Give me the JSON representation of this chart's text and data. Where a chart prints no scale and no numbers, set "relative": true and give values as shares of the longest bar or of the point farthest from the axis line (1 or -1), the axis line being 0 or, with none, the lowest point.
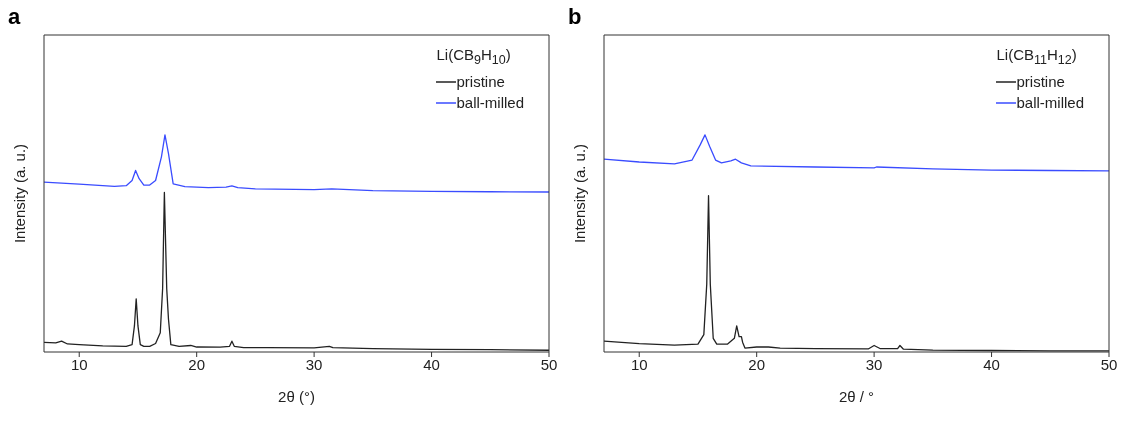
{
  "chart_data": [
    {
      "type": "line",
      "title": "a",
      "xlabel": "2θ (°)",
      "ylabel": "Intensity (a. u.)",
      "legend_title": "Li(CB$_{9}$H$_{10}$)",
      "legend": "top right",
      "relative": true,
      "marker": "none",
      "line_style": "solid",
      "xlim": [
        7,
        50
      ],
      "xticks": [
        10,
        20,
        30,
        40,
        50
      ],
      "series": [
        {
          "name": "pristine",
          "color": "#222222",
          "x": [
            7,
            8,
            8.5,
            9,
            10,
            12,
            14,
            14.5,
            14.7,
            14.85,
            15.0,
            15.2,
            15.5,
            16,
            16.5,
            16.9,
            17.1,
            17.25,
            17.45,
            17.6,
            17.8,
            18.5,
            19.5,
            20,
            22,
            22.8,
            23,
            23.2,
            24,
            26,
            30,
            31.3,
            31.6,
            35,
            40,
            45,
            50
          ],
          "values": [
            0.044,
            0.042,
            0.05,
            0.037,
            0.034,
            0.028,
            0.026,
            0.034,
            0.12,
            0.245,
            0.12,
            0.034,
            0.026,
            0.026,
            0.039,
            0.089,
            0.291,
            0.735,
            0.291,
            0.151,
            0.034,
            0.026,
            0.03,
            0.023,
            0.022,
            0.026,
            0.05,
            0.026,
            0.02,
            0.02,
            0.019,
            0.026,
            0.02,
            0.016,
            0.012,
            0.011,
            0.008
          ]
        },
        {
          "name": "ball-milled",
          "color": "#3a4cff",
          "x": [
            7,
            10,
            13,
            14,
            14.5,
            14.8,
            15.1,
            15.5,
            16,
            16.5,
            17,
            17.3,
            17.6,
            18,
            19,
            21,
            22.5,
            23,
            23.5,
            25,
            30,
            31.5,
            35,
            40,
            45,
            50
          ],
          "values": [
            0.782,
            0.773,
            0.763,
            0.766,
            0.79,
            0.836,
            0.798,
            0.769,
            0.769,
            0.79,
            0.899,
            1,
            0.914,
            0.774,
            0.762,
            0.757,
            0.759,
            0.765,
            0.757,
            0.751,
            0.748,
            0.751,
            0.743,
            0.74,
            0.738,
            0.737
          ]
        }
      ]
    },
    {
      "type": "line",
      "title": "b",
      "xlabel": "2θ / °",
      "ylabel": "Intensity (a. u.)",
      "legend_title": "Li(CB$_{11}$H$_{12}$)",
      "legend": "top right",
      "relative": true,
      "marker": "none",
      "line_style": "solid",
      "xlim": [
        7,
        50
      ],
      "xticks": [
        10,
        20,
        30,
        40,
        50
      ],
      "series": [
        {
          "name": "pristine",
          "color": "#222222",
          "x": [
            7,
            10,
            13,
            15,
            15.5,
            15.75,
            15.9,
            16.05,
            16.3,
            16.6,
            17.5,
            18.1,
            18.3,
            18.5,
            18.7,
            18.8,
            19,
            20,
            21,
            22,
            25,
            29.5,
            30,
            30.5,
            32,
            32.2,
            32.5,
            35,
            40,
            45,
            50
          ],
          "values": [
            0.05,
            0.039,
            0.032,
            0.036,
            0.08,
            0.313,
            0.72,
            0.313,
            0.063,
            0.036,
            0.036,
            0.063,
            0.12,
            0.071,
            0.071,
            0.045,
            0.018,
            0.023,
            0.023,
            0.018,
            0.016,
            0.014,
            0.03,
            0.016,
            0.016,
            0.03,
            0.013,
            0.009,
            0.007,
            0.005,
            0.005
          ]
        },
        {
          "name": "ball-milled",
          "color": "#3a4cff",
          "x": [
            7,
            10,
            13,
            14.5,
            15.2,
            15.6,
            16,
            16.5,
            17,
            17.8,
            18.2,
            18.7,
            19.5,
            25,
            30,
            30.2,
            35,
            40,
            45,
            50
          ],
          "values": [
            0.888,
            0.875,
            0.866,
            0.884,
            0.955,
            1,
            0.946,
            0.884,
            0.871,
            0.88,
            0.888,
            0.871,
            0.857,
            0.852,
            0.848,
            0.852,
            0.843,
            0.838,
            0.836,
            0.834
          ]
        }
      ]
    }
  ]
}
